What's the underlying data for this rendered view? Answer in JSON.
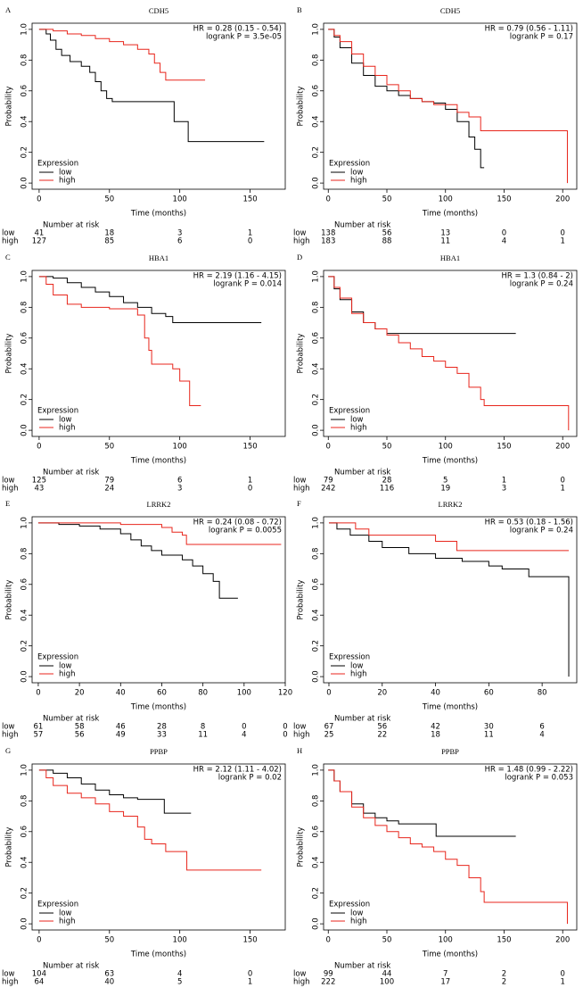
{
  "chart_data": [
    {
      "type": "line",
      "step": true,
      "panel": "A",
      "title": "CDH5",
      "hr": "HR = 0.28 (0.15 - 0.54)",
      "logrank": "logrank P = 3.5e-05",
      "xlabel": "Time (months)",
      "ylabel": "Probability",
      "legend_title": "Expression",
      "risk_title": "Number at risk",
      "xlim": [
        -5,
        175
      ],
      "xticks": [
        0,
        50,
        100,
        150
      ],
      "ylim": [
        -0.04,
        1.04
      ],
      "yticks": [
        {
          "value": 0,
          "label": "0.0"
        },
        0.2,
        0.4,
        0.6,
        0.8,
        {
          "value": 1,
          "label": "1.0"
        }
      ],
      "series": [
        {
          "name": "low",
          "color": "#000000",
          "x": [
            0,
            5,
            8,
            12,
            16,
            22,
            30,
            36,
            40,
            44,
            48,
            52,
            96,
            106,
            160
          ],
          "values": [
            1,
            0.97,
            0.93,
            0.87,
            0.83,
            0.79,
            0.76,
            0.72,
            0.66,
            0.6,
            0.55,
            0.53,
            0.4,
            0.27,
            0.27
          ],
          "at_risk": [
            41,
            18,
            3,
            1
          ]
        },
        {
          "name": "high",
          "color": "#e8261c",
          "x": [
            0,
            10,
            20,
            30,
            40,
            50,
            60,
            70,
            78,
            82,
            86,
            90,
            118
          ],
          "values": [
            1,
            0.99,
            0.97,
            0.96,
            0.94,
            0.92,
            0.9,
            0.87,
            0.84,
            0.78,
            0.72,
            0.67,
            0.67
          ],
          "at_risk": [
            127,
            85,
            6,
            0
          ]
        }
      ]
    },
    {
      "type": "line",
      "step": true,
      "panel": "B",
      "title": "CDH5",
      "hr": "HR = 0.79 (0.56 - 1.11)",
      "logrank": "logrank P = 0.17",
      "xlabel": "Time (months)",
      "ylabel": "Probability",
      "legend_title": "Expression",
      "risk_title": "Number at risk",
      "xlim": [
        -4,
        212
      ],
      "xticks": [
        0,
        50,
        100,
        150,
        200
      ],
      "ylim": [
        -0.04,
        1.04
      ],
      "yticks": [
        {
          "value": 0,
          "label": "0.0"
        },
        0.2,
        0.4,
        0.6,
        0.8,
        {
          "value": 1,
          "label": "1.0"
        }
      ],
      "series": [
        {
          "name": "low",
          "color": "#000000",
          "x": [
            0,
            5,
            10,
            20,
            30,
            40,
            50,
            60,
            70,
            80,
            90,
            100,
            110,
            120,
            125,
            130,
            133
          ],
          "values": [
            1,
            0.95,
            0.88,
            0.78,
            0.7,
            0.63,
            0.6,
            0.57,
            0.55,
            0.53,
            0.52,
            0.48,
            0.4,
            0.3,
            0.22,
            0.1,
            0.1
          ],
          "at_risk": [
            138,
            56,
            13,
            0,
            0
          ]
        },
        {
          "name": "high",
          "color": "#e8261c",
          "x": [
            0,
            5,
            10,
            20,
            30,
            40,
            50,
            60,
            70,
            80,
            90,
            110,
            120,
            130,
            203,
            204
          ],
          "values": [
            1,
            0.96,
            0.92,
            0.84,
            0.76,
            0.7,
            0.64,
            0.6,
            0.55,
            0.53,
            0.51,
            0.46,
            0.43,
            0.34,
            0.34,
            0
          ],
          "at_risk": [
            183,
            88,
            11,
            4,
            1
          ]
        }
      ]
    },
    {
      "type": "line",
      "step": true,
      "panel": "C",
      "title": "HBA1",
      "hr": "HR = 2.19 (1.16 - 4.15)",
      "logrank": "logrank P = 0.014",
      "xlabel": "Time (months)",
      "ylabel": "Probability",
      "legend_title": "Expression",
      "risk_title": "Number at risk",
      "xlim": [
        -5,
        175
      ],
      "xticks": [
        0,
        50,
        100,
        150
      ],
      "ylim": [
        -0.04,
        1.04
      ],
      "yticks": [
        {
          "value": 0,
          "label": "0.0"
        },
        0.2,
        0.4,
        0.6,
        0.8,
        {
          "value": 1,
          "label": "1.0"
        }
      ],
      "series": [
        {
          "name": "low",
          "color": "#000000",
          "x": [
            0,
            10,
            20,
            30,
            40,
            50,
            60,
            70,
            80,
            90,
            95,
            158
          ],
          "values": [
            1,
            0.99,
            0.96,
            0.93,
            0.9,
            0.87,
            0.83,
            0.8,
            0.76,
            0.74,
            0.7,
            0.7
          ],
          "at_risk": [
            125,
            79,
            6,
            1
          ]
        },
        {
          "name": "high",
          "color": "#e8261c",
          "x": [
            0,
            5,
            10,
            20,
            30,
            50,
            70,
            75,
            78,
            80,
            95,
            100,
            107,
            115
          ],
          "values": [
            1,
            0.95,
            0.88,
            0.82,
            0.8,
            0.79,
            0.75,
            0.6,
            0.52,
            0.43,
            0.4,
            0.32,
            0.16,
            0.16
          ],
          "at_risk": [
            43,
            24,
            3,
            0
          ]
        }
      ]
    },
    {
      "type": "line",
      "step": true,
      "panel": "D",
      "title": "HBA1",
      "hr": "HR = 1.3 (0.84 - 2)",
      "logrank": "logrank P = 0.24",
      "xlabel": "Time (months)",
      "ylabel": "Probability",
      "legend_title": "Expression",
      "risk_title": "Number at risk",
      "xlim": [
        -4,
        212
      ],
      "xticks": [
        0,
        50,
        100,
        150,
        200
      ],
      "ylim": [
        -0.04,
        1.04
      ],
      "yticks": [
        {
          "value": 0,
          "label": "0.0"
        },
        0.2,
        0.4,
        0.6,
        0.8,
        {
          "value": 1,
          "label": "1.0"
        }
      ],
      "series": [
        {
          "name": "low",
          "color": "#000000",
          "x": [
            0,
            5,
            10,
            20,
            30,
            40,
            50,
            160
          ],
          "values": [
            1,
            0.92,
            0.85,
            0.77,
            0.7,
            0.66,
            0.63,
            0.63
          ],
          "at_risk": [
            79,
            28,
            5,
            1,
            0
          ]
        },
        {
          "name": "high",
          "color": "#e8261c",
          "x": [
            0,
            5,
            10,
            20,
            30,
            40,
            50,
            60,
            70,
            80,
            90,
            100,
            110,
            120,
            130,
            133,
            204,
            205
          ],
          "values": [
            1,
            0.93,
            0.86,
            0.76,
            0.7,
            0.66,
            0.62,
            0.57,
            0.53,
            0.48,
            0.45,
            0.41,
            0.37,
            0.28,
            0.2,
            0.16,
            0.16,
            0
          ],
          "at_risk": [
            242,
            116,
            19,
            3,
            1
          ]
        }
      ]
    },
    {
      "type": "line",
      "step": true,
      "panel": "E",
      "title": "LRRK2",
      "hr": "HR = 0.24 (0.08 - 0.72)",
      "logrank": "logrank P = 0.0055",
      "xlabel": "Time (months)",
      "ylabel": "Probability",
      "legend_title": "Expression",
      "risk_title": "Number at risk",
      "xlim": [
        -3,
        120
      ],
      "xticks": [
        0,
        20,
        40,
        60,
        80,
        100,
        120
      ],
      "ylim": [
        -0.04,
        1.04
      ],
      "yticks": [
        {
          "value": 0,
          "label": "0.0"
        },
        0.2,
        0.4,
        0.6,
        0.8,
        {
          "value": 1,
          "label": "1.0"
        }
      ],
      "series": [
        {
          "name": "low",
          "color": "#000000",
          "x": [
            0,
            10,
            20,
            30,
            40,
            45,
            50,
            55,
            60,
            70,
            75,
            80,
            85,
            88,
            97
          ],
          "values": [
            1,
            0.99,
            0.98,
            0.96,
            0.93,
            0.89,
            0.85,
            0.82,
            0.79,
            0.76,
            0.72,
            0.67,
            0.62,
            0.51,
            0.51
          ],
          "at_risk": [
            61,
            58,
            46,
            28,
            8,
            0,
            0
          ]
        },
        {
          "name": "high",
          "color": "#e8261c",
          "x": [
            0,
            20,
            40,
            60,
            65,
            70,
            72,
            118
          ],
          "values": [
            1,
            1,
            0.99,
            0.97,
            0.94,
            0.92,
            0.86,
            0.86
          ],
          "at_risk": [
            57,
            56,
            49,
            33,
            11,
            4,
            0
          ]
        }
      ]
    },
    {
      "type": "line",
      "step": true,
      "panel": "F",
      "title": "LRRK2",
      "hr": "HR = 0.53 (0.18 - 1.56)",
      "logrank": "logrank P = 0.24",
      "xlabel": "Time (months)",
      "ylabel": "Probability",
      "legend_title": "Expression",
      "risk_title": "Number at risk",
      "xlim": [
        -2,
        93
      ],
      "xticks": [
        0,
        20,
        40,
        60,
        80
      ],
      "ylim": [
        -0.04,
        1.04
      ],
      "yticks": [
        {
          "value": 0,
          "label": "0.0"
        },
        0.2,
        0.4,
        0.6,
        0.8,
        {
          "value": 1,
          "label": "1.0"
        }
      ],
      "series": [
        {
          "name": "low",
          "color": "#000000",
          "x": [
            0,
            3,
            8,
            15,
            20,
            30,
            40,
            50,
            60,
            65,
            75,
            89,
            90
          ],
          "values": [
            1,
            0.96,
            0.92,
            0.88,
            0.84,
            0.8,
            0.77,
            0.75,
            0.72,
            0.7,
            0.65,
            0.65,
            0
          ],
          "at_risk": [
            67,
            56,
            42,
            30,
            6
          ]
        },
        {
          "name": "high",
          "color": "#e8261c",
          "x": [
            0,
            10,
            15,
            35,
            40,
            48,
            90
          ],
          "values": [
            1,
            0.96,
            0.92,
            0.92,
            0.88,
            0.82,
            0.82
          ],
          "at_risk": [
            25,
            22,
            18,
            11,
            4
          ]
        }
      ]
    },
    {
      "type": "line",
      "step": true,
      "panel": "G",
      "title": "PPBP",
      "hr": "HR = 2.12 (1.11 - 4.02)",
      "logrank": "logrank P = 0.02",
      "xlabel": "Time (months)",
      "ylabel": "Probability",
      "legend_title": "Expression",
      "risk_title": "Number at risk",
      "xlim": [
        -5,
        175
      ],
      "xticks": [
        0,
        50,
        100,
        150
      ],
      "ylim": [
        -0.04,
        1.04
      ],
      "yticks": [
        {
          "value": 0,
          "label": "0.0"
        },
        0.2,
        0.4,
        0.6,
        0.8,
        {
          "value": 1,
          "label": "1.0"
        }
      ],
      "series": [
        {
          "name": "low",
          "color": "#000000",
          "x": [
            0,
            10,
            20,
            30,
            40,
            50,
            60,
            70,
            88,
            89,
            108
          ],
          "values": [
            1,
            0.98,
            0.95,
            0.91,
            0.87,
            0.84,
            0.82,
            0.81,
            0.81,
            0.72,
            0.72
          ],
          "at_risk": [
            104,
            63,
            4,
            0
          ]
        },
        {
          "name": "high",
          "color": "#e8261c",
          "x": [
            0,
            5,
            10,
            20,
            30,
            40,
            50,
            60,
            70,
            75,
            80,
            90,
            105,
            158
          ],
          "values": [
            1,
            0.95,
            0.9,
            0.85,
            0.82,
            0.78,
            0.73,
            0.7,
            0.63,
            0.55,
            0.52,
            0.47,
            0.35,
            0.35
          ],
          "at_risk": [
            64,
            40,
            5,
            1
          ]
        }
      ]
    },
    {
      "type": "line",
      "step": true,
      "panel": "H",
      "title": "PPBP",
      "hr": "HR = 1.48 (0.99 - 2.22)",
      "logrank": "logrank P = 0.053",
      "xlabel": "Time (months)",
      "ylabel": "Probability",
      "legend_title": "Expression",
      "risk_title": "Number at risk",
      "xlim": [
        -4,
        212
      ],
      "xticks": [
        0,
        50,
        100,
        150,
        200
      ],
      "ylim": [
        -0.04,
        1.04
      ],
      "yticks": [
        {
          "value": 0,
          "label": "0.0"
        },
        0.2,
        0.4,
        0.6,
        0.8,
        {
          "value": 1,
          "label": "1.0"
        }
      ],
      "series": [
        {
          "name": "low",
          "color": "#000000",
          "x": [
            0,
            5,
            10,
            20,
            30,
            40,
            50,
            60,
            90,
            92,
            160
          ],
          "values": [
            1,
            0.93,
            0.86,
            0.78,
            0.72,
            0.69,
            0.67,
            0.65,
            0.65,
            0.57,
            0.57
          ],
          "at_risk": [
            99,
            44,
            7,
            2,
            0
          ]
        },
        {
          "name": "high",
          "color": "#e8261c",
          "x": [
            0,
            5,
            10,
            20,
            30,
            40,
            50,
            60,
            70,
            80,
            90,
            100,
            110,
            120,
            130,
            133,
            203,
            204
          ],
          "values": [
            1,
            0.93,
            0.86,
            0.76,
            0.69,
            0.64,
            0.6,
            0.56,
            0.52,
            0.5,
            0.47,
            0.42,
            0.38,
            0.3,
            0.21,
            0.14,
            0.14,
            0
          ],
          "at_risk": [
            222,
            100,
            17,
            2,
            1
          ]
        }
      ]
    }
  ]
}
